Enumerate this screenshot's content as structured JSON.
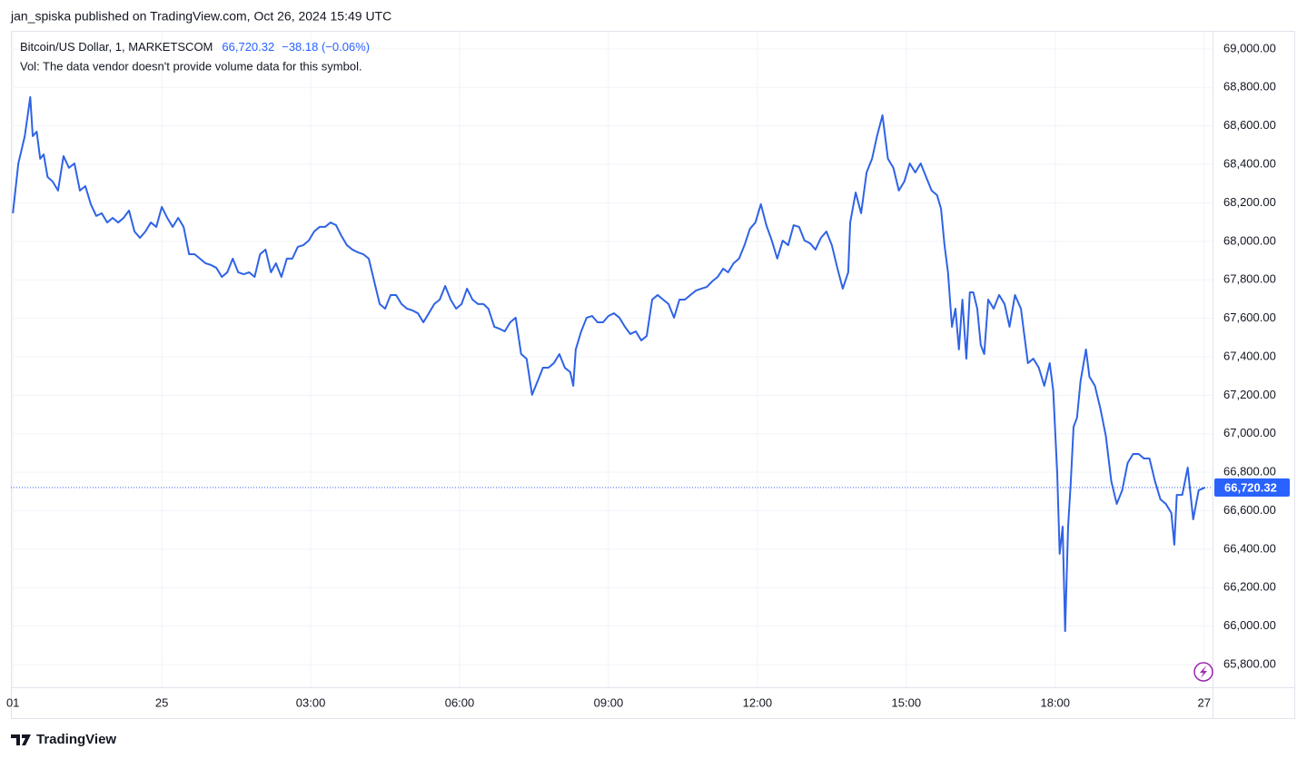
{
  "header": {
    "publisher": "jan_spiska published on TradingView.com, Oct 26, 2024 15:49 UTC",
    "footer_brand": "TradingView"
  },
  "chart_data": {
    "type": "line",
    "title": "Bitcoin/US Dollar, 1, MARKETSCOM",
    "last_price": {
      "value": 66720.32,
      "label": "66,720.32"
    },
    "change_label": "−38.18 (−0.06%)",
    "annotation": "Vol: The data vendor doesn't provide volume data for this symbol.",
    "color": "#2f63e6",
    "grid": true,
    "xlim": [
      -3.04,
      21.17
    ],
    "ylim": [
      65682,
      69094
    ],
    "xticks": [
      {
        "value": -3,
        "label": "01"
      },
      {
        "value": 0,
        "label": "25"
      },
      {
        "value": 3,
        "label": "03:00"
      },
      {
        "value": 6,
        "label": "06:00"
      },
      {
        "value": 9,
        "label": "09:00"
      },
      {
        "value": 12,
        "label": "12:00"
      },
      {
        "value": 15,
        "label": "15:00"
      },
      {
        "value": 18,
        "label": "18:00"
      },
      {
        "value": 21,
        "label": "27"
      }
    ],
    "yticks": [
      {
        "value": 65800,
        "label": "65,800.00"
      },
      {
        "value": 66000,
        "label": "66,000.00"
      },
      {
        "value": 66200,
        "label": "66,200.00"
      },
      {
        "value": 66400,
        "label": "66,400.00"
      },
      {
        "value": 66600,
        "label": "66,600.00"
      },
      {
        "value": 66800,
        "label": "66,800.00"
      },
      {
        "value": 67000,
        "label": "67,000.00"
      },
      {
        "value": 67200,
        "label": "67,200.00"
      },
      {
        "value": 67400,
        "label": "67,400.00"
      },
      {
        "value": 67600,
        "label": "67,600.00"
      },
      {
        "value": 67800,
        "label": "67,800.00"
      },
      {
        "value": 68000,
        "label": "68,000.00"
      },
      {
        "value": 68200,
        "label": "68,200.00"
      },
      {
        "value": 68400,
        "label": "68,400.00"
      },
      {
        "value": 68600,
        "label": "68,600.00"
      },
      {
        "value": 68800,
        "label": "68,800.00"
      },
      {
        "value": 69000,
        "label": "69,000.00"
      }
    ],
    "x": [
      -3.0,
      -2.89,
      -2.76,
      -2.65,
      -2.6,
      -2.52,
      -2.45,
      -2.38,
      -2.3,
      -2.2,
      -2.09,
      -1.98,
      -1.87,
      -1.76,
      -1.65,
      -1.54,
      -1.43,
      -1.32,
      -1.21,
      -1.1,
      -0.99,
      -0.88,
      -0.77,
      -0.66,
      -0.55,
      -0.44,
      -0.33,
      -0.22,
      -0.11,
      0,
      0.11,
      0.22,
      0.33,
      0.44,
      0.55,
      0.66,
      0.77,
      0.88,
      0.99,
      1.1,
      1.21,
      1.32,
      1.43,
      1.54,
      1.65,
      1.76,
      1.87,
      1.98,
      2.09,
      2.2,
      2.3,
      2.41,
      2.52,
      2.63,
      2.74,
      2.85,
      2.96,
      3.07,
      3.18,
      3.29,
      3.4,
      3.51,
      3.62,
      3.73,
      3.84,
      3.95,
      4.06,
      4.17,
      4.28,
      4.39,
      4.5,
      4.61,
      4.72,
      4.83,
      4.94,
      5.05,
      5.16,
      5.27,
      5.38,
      5.49,
      5.6,
      5.71,
      5.82,
      5.93,
      6.04,
      6.15,
      6.26,
      6.37,
      6.48,
      6.58,
      6.7,
      6.8,
      6.91,
      7.02,
      7.13,
      7.24,
      7.35,
      7.46,
      7.57,
      7.68,
      7.79,
      7.9,
      8.01,
      8.12,
      8.23,
      8.29,
      8.34,
      8.45,
      8.56,
      8.67,
      8.78,
      8.89,
      9.0,
      9.11,
      9.22,
      9.33,
      9.44,
      9.55,
      9.66,
      9.77,
      9.88,
      9.99,
      10.1,
      10.21,
      10.32,
      10.43,
      10.54,
      10.65,
      10.76,
      10.87,
      10.98,
      11.09,
      11.2,
      11.31,
      11.41,
      11.52,
      11.63,
      11.74,
      11.85,
      11.96,
      12.07,
      12.18,
      12.29,
      12.4,
      12.51,
      12.62,
      12.73,
      12.84,
      12.95,
      13.06,
      13.17,
      13.28,
      13.39,
      13.5,
      13.61,
      13.72,
      13.83,
      13.87,
      13.98,
      14.09,
      14.2,
      14.31,
      14.41,
      14.52,
      14.63,
      14.74,
      14.85,
      14.96,
      15.07,
      15.18,
      15.29,
      15.4,
      15.51,
      15.62,
      15.7,
      15.77,
      15.84,
      15.92,
      15.99,
      16.06,
      16.13,
      16.21,
      16.28,
      16.35,
      16.43,
      16.5,
      16.57,
      16.65,
      16.76,
      16.87,
      16.98,
      17.08,
      17.19,
      17.31,
      17.38,
      17.45,
      17.56,
      17.67,
      17.78,
      17.89,
      17.96,
      18.04,
      18.09,
      18.15,
      18.2,
      18.26,
      18.31,
      18.37,
      18.44,
      18.51,
      18.62,
      18.69,
      18.8,
      18.91,
      19.02,
      19.13,
      19.24,
      19.35,
      19.46,
      19.57,
      19.68,
      19.79,
      19.9,
      20.01,
      20.12,
      20.23,
      20.34,
      20.4,
      20.45,
      20.56,
      20.67,
      20.78,
      20.89,
      21.02
    ],
    "values": [
      68146,
      68405,
      68547,
      68750,
      68547,
      68570,
      68429,
      68452,
      68334,
      68311,
      68264,
      68443,
      68382,
      68405,
      68264,
      68287,
      68193,
      68132,
      68146,
      68098,
      68122,
      68098,
      68122,
      68160,
      68051,
      68018,
      68051,
      68098,
      68075,
      68179,
      68122,
      68075,
      68122,
      68075,
      67933,
      67933,
      67910,
      67886,
      67877,
      67862,
      67815,
      67839,
      67910,
      67839,
      67829,
      67839,
      67815,
      67933,
      67957,
      67839,
      67886,
      67815,
      67910,
      67910,
      67971,
      67980,
      68004,
      68051,
      68075,
      68075,
      68098,
      68084,
      68028,
      67980,
      67957,
      67943,
      67933,
      67910,
      67792,
      67674,
      67650,
      67721,
      67721,
      67674,
      67650,
      67641,
      67626,
      67579,
      67626,
      67674,
      67697,
      67768,
      67697,
      67650,
      67674,
      67754,
      67697,
      67674,
      67674,
      67650,
      67556,
      67546,
      67532,
      67579,
      67603,
      67414,
      67390,
      67202,
      67272,
      67343,
      67343,
      67367,
      67414,
      67343,
      67320,
      67249,
      67438,
      67532,
      67603,
      67612,
      67579,
      67579,
      67612,
      67626,
      67603,
      67556,
      67518,
      67532,
      67485,
      67508,
      67697,
      67721,
      67697,
      67674,
      67603,
      67697,
      67697,
      67721,
      67744,
      67754,
      67763,
      67792,
      67815,
      67858,
      67839,
      67886,
      67910,
      67980,
      68065,
      68098,
      68193,
      68084,
      68004,
      67910,
      68004,
      67980,
      68084,
      68075,
      68004,
      67990,
      67957,
      68018,
      68051,
      67980,
      67862,
      67754,
      67839,
      68098,
      68254,
      68146,
      68358,
      68429,
      68547,
      68655,
      68429,
      68382,
      68264,
      68311,
      68405,
      68358,
      68405,
      68334,
      68264,
      68240,
      68169,
      67980,
      67839,
      67556,
      67650,
      67438,
      67697,
      67390,
      67735,
      67735,
      67650,
      67461,
      67414,
      67697,
      67650,
      67721,
      67674,
      67556,
      67721,
      67650,
      67508,
      67367,
      67390,
      67343,
      67249,
      67367,
      67225,
      66800,
      66376,
      66517,
      65974,
      66517,
      66730,
      67036,
      67084,
      67272,
      67438,
      67296,
      67249,
      67131,
      66989,
      66753,
      66635,
      66706,
      66848,
      66895,
      66895,
      66871,
      66871,
      66753,
      66659,
      66635,
      66588,
      66423,
      66682,
      66682,
      66824,
      66555,
      66706,
      66720.32
    ]
  }
}
